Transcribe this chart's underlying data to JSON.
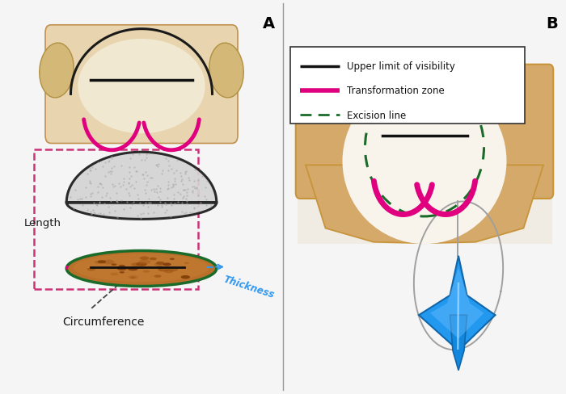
{
  "figure_width": 7.0,
  "figure_height": 4.89,
  "dpi": 100,
  "background_color": "#f5f5f5",
  "panel_A_label": "A",
  "panel_B_label": "B",
  "legend_items": [
    {
      "label": "Upper limit of visibility",
      "color": "#111111",
      "linestyle": "solid",
      "linewidth": 2.5
    },
    {
      "label": "Transformation zone",
      "color": "#e0007f",
      "linestyle": "solid",
      "linewidth": 4.0
    },
    {
      "label": "Excision line",
      "color": "#1a6b2a",
      "linestyle": "dashed",
      "linewidth": 2.0
    }
  ],
  "label_length": "Length",
  "label_thickness": "Thickness",
  "label_circumference": "Circumference",
  "body_tan": "#d4a96a",
  "body_tan2": "#c8943a",
  "cone_gray": "#d8d8d8",
  "cone_outline": "#1a1a1a",
  "dashed_pink": "#e0007f",
  "dashed_box_pink": "#cc3377",
  "arrow_blue": "#3399ee",
  "blue_instrument": "#2288dd",
  "wire_loop_color": "#aaaaaa",
  "text_bg": "#f0ece4"
}
